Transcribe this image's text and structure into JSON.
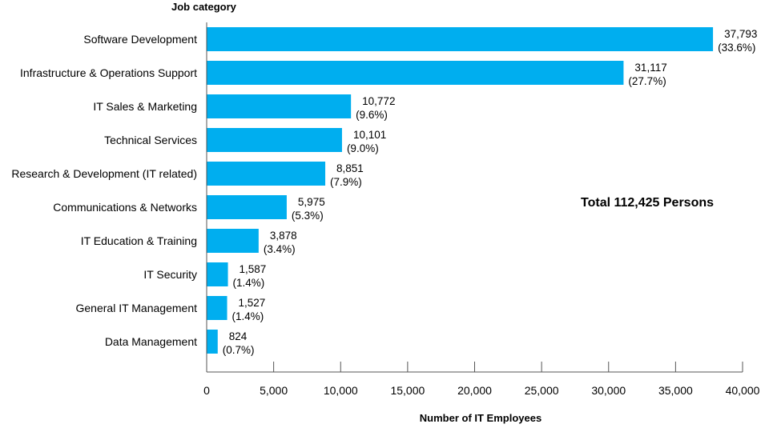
{
  "chart_data": {
    "type": "bar",
    "orientation": "horizontal",
    "title": "",
    "ylabel": "Job category",
    "xlabel": "Number of IT Employees",
    "annotation": "Total 112,425 Persons",
    "xlim": [
      0,
      40000
    ],
    "xticks": [
      0,
      5000,
      10000,
      15000,
      20000,
      25000,
      30000,
      35000,
      40000
    ],
    "xtick_labels": [
      "0",
      "5,000",
      "10,000",
      "15,000",
      "20,000",
      "25,000",
      "30,000",
      "35,000",
      "40,000"
    ],
    "bar_color": "#00AEEF",
    "categories": [
      "Software Development",
      "Infrastructure & Operations Support",
      "IT Sales & Marketing",
      "Technical Services",
      "Research & Development (IT related)",
      "Communications & Networks",
      "IT Education & Training",
      "IT Security",
      "General IT Management",
      "Data Management"
    ],
    "values": [
      37793,
      31117,
      10772,
      10101,
      8851,
      5975,
      3878,
      1587,
      1527,
      824
    ],
    "value_labels": [
      "37,793",
      "31,117",
      "10,772",
      "10,101",
      "8,851",
      "5,975",
      "3,878",
      "1,587",
      "1,527",
      "824"
    ],
    "percent_labels": [
      "(33.6%)",
      "(27.7%)",
      "(9.6%)",
      "(9.0%)",
      "(7.9%)",
      "(5.3%)",
      "(3.4%)",
      "(1.4%)",
      "(1.4%)",
      "(0.7%)"
    ]
  }
}
